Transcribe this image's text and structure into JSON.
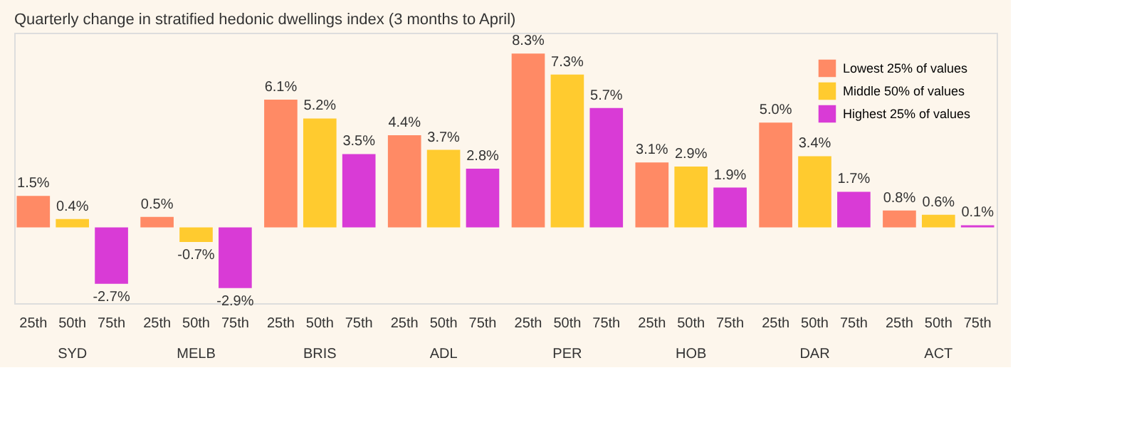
{
  "chart_data": {
    "type": "bar",
    "title": "Quarterly change in stratified hedonic dwellings index (3 months to April)",
    "categories": [
      "SYD",
      "MELB",
      "BRIS",
      "ADL",
      "PER",
      "HOB",
      "DAR",
      "ACT"
    ],
    "series": [
      {
        "name": "Lowest 25% of values",
        "color": "#ff8a65",
        "values": [
          1.5,
          0.5,
          6.1,
          4.4,
          8.3,
          3.1,
          5.0,
          0.8
        ],
        "value_labels": [
          "1.5%",
          "0.5%",
          "6.1%",
          "4.4%",
          "8.3%",
          "3.1%",
          "5.0%",
          "0.8%"
        ]
      },
      {
        "name": "Middle 50% of values",
        "color": "#ffcb2f",
        "values": [
          0.4,
          -0.7,
          5.2,
          3.7,
          7.3,
          2.9,
          3.4,
          0.6
        ],
        "value_labels": [
          "0.4%",
          "-0.7%",
          "5.2%",
          "3.7%",
          "7.3%",
          "2.9%",
          "3.4%",
          "0.6%"
        ]
      },
      {
        "name": "Highest 25% of values",
        "color": "#d93bd6",
        "values": [
          -2.7,
          -2.9,
          3.5,
          2.8,
          5.7,
          1.9,
          1.7,
          0.1
        ],
        "value_labels": [
          "-2.7%",
          "-2.9%",
          "3.5%",
          "2.8%",
          "5.7%",
          "1.9%",
          "1.7%",
          "0.1%"
        ]
      }
    ],
    "annotations": [
      "25th",
      "50th",
      "75th"
    ],
    "legend": "top right",
    "grid": false
  }
}
